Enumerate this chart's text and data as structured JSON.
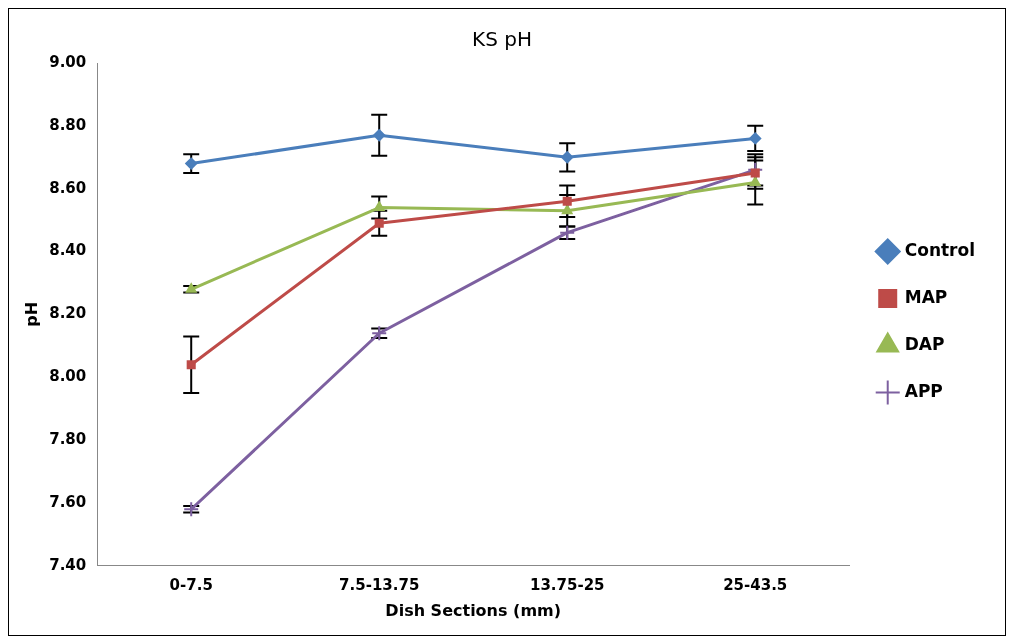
{
  "chart_data": {
    "type": "line",
    "title": "KS pH",
    "xlabel": "Dish Sections (mm)",
    "ylabel": "pH",
    "categories": [
      "0-7.5",
      "7.5-13.75",
      "13.75-25",
      "25-43.5"
    ],
    "ylim": [
      7.4,
      9.0
    ],
    "yticks": [
      {
        "value": 7.4,
        "label": "7.40"
      },
      {
        "value": 7.6,
        "label": "7.60"
      },
      {
        "value": 7.8,
        "label": "7.80"
      },
      {
        "value": 8.0,
        "label": "8.00"
      },
      {
        "value": 8.2,
        "label": "8.20"
      },
      {
        "value": 8.4,
        "label": "8.40"
      },
      {
        "value": 8.6,
        "label": "8.60"
      },
      {
        "value": 8.8,
        "label": "8.80"
      },
      {
        "value": 9.0,
        "label": "9.00"
      }
    ],
    "grid": false,
    "legend": "right",
    "line_style": "solid",
    "series": [
      {
        "name": "Control",
        "color": "#4a7ebb",
        "marker": "diamond",
        "values": [
          8.68,
          8.77,
          8.7,
          8.76
        ],
        "errors": [
          0.03,
          0.065,
          0.045,
          0.04
        ]
      },
      {
        "name": "MAP",
        "color": "#be4b48",
        "marker": "square",
        "values": [
          8.04,
          8.49,
          8.56,
          8.65
        ],
        "errors": [
          0.09,
          0.04,
          0.05,
          0.05
        ]
      },
      {
        "name": "DAP",
        "color": "#98b954",
        "marker": "triangle",
        "values": [
          8.28,
          8.54,
          8.53,
          8.62
        ],
        "errors": [
          0.01,
          0.035,
          0.05,
          0.07
        ]
      },
      {
        "name": "APP",
        "color": "#7d60a0",
        "marker": "cross",
        "values": [
          7.58,
          8.14,
          8.46,
          8.66
        ],
        "errors": [
          0.01,
          0.015,
          0.02,
          0.05
        ]
      }
    ]
  }
}
